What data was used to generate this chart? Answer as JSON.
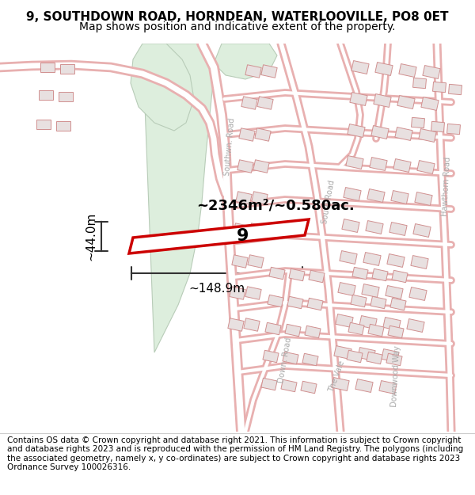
{
  "title": "9, SOUTHDOWN ROAD, HORNDEAN, WATERLOOVILLE, PO8 0ET",
  "subtitle": "Map shows position and indicative extent of the property.",
  "footer": "Contains OS data © Crown copyright and database right 2021. This information is subject to Crown copyright and database rights 2023 and is reproduced with the permission of HM Land Registry. The polygons (including the associated geometry, namely x, y co-ordinates) are subject to Crown copyright and database rights 2023 Ordnance Survey 100026316.",
  "map_bg": "#f7f0f0",
  "road_color": "#e8b0b0",
  "building_fill": "#e8e0e0",
  "building_stroke": "#d09090",
  "green_fill": "#ddeedd",
  "green_stroke": "#b8ccb8",
  "highlight_fill": "#ffffff",
  "highlight_stroke": "#cc0000",
  "number_label": "9",
  "area_label": "~2346m²/~0.580ac.",
  "width_label": "~148.9m",
  "height_label": "~44.0m",
  "title_fontsize": 11,
  "subtitle_fontsize": 10,
  "footer_fontsize": 7.5,
  "label_fontsize": 13,
  "measure_fontsize": 11,
  "road_label_color": "#aaaaaa",
  "road_label_size": 7
}
